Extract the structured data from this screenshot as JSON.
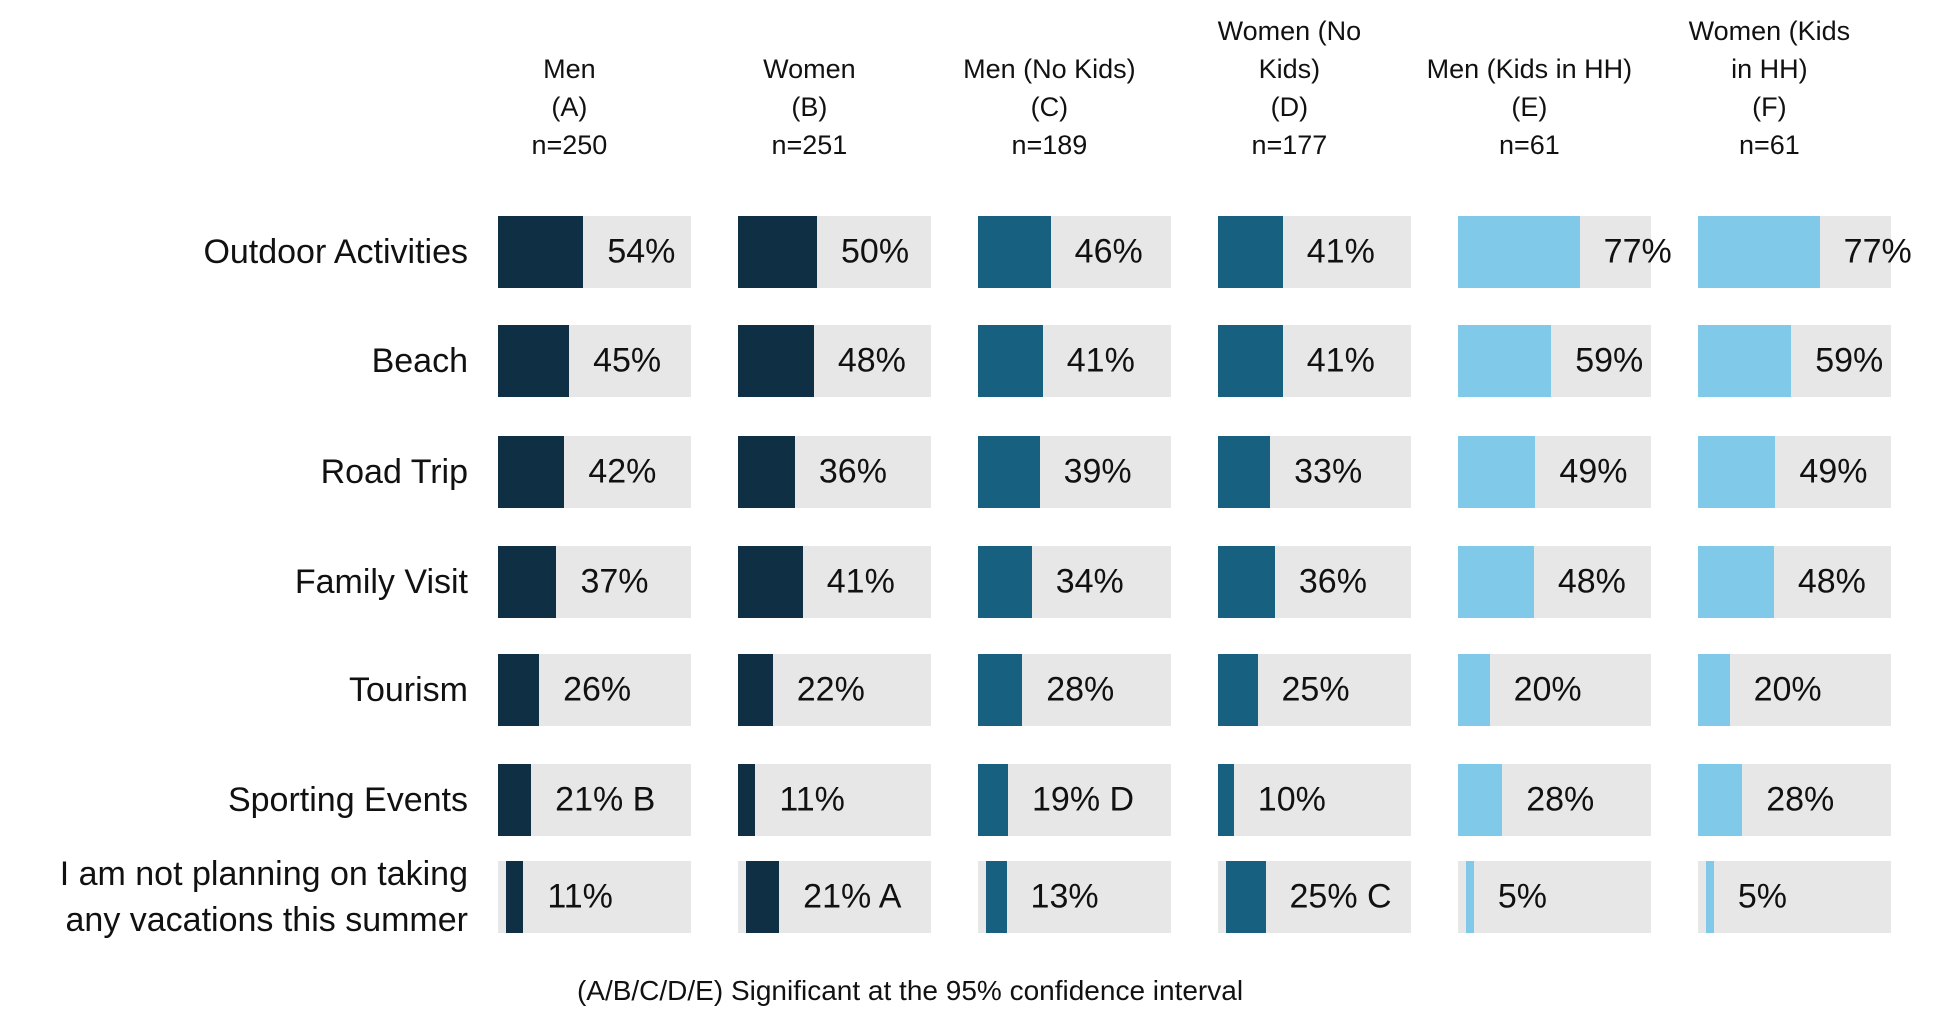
{
  "chart_data": {
    "type": "bar",
    "orientation": "horizontal",
    "footnote": "(A/B/C/D/E) Significant at the 95% confidence interval",
    "xlim": [
      0,
      100
    ],
    "categories": [
      "Outdoor Activities",
      "Beach",
      "Road Trip",
      "Family Visit",
      "Tourism",
      "Sporting Events",
      "I am not planning on taking any vacations this summer"
    ],
    "series": [
      {
        "name": "Men\n(A)\nn=250",
        "color": "#0e2f44",
        "values": [
          54,
          45,
          42,
          37,
          26,
          21,
          11
        ],
        "value_labels": [
          "54%",
          "45%",
          "42%",
          "37%",
          "26%",
          "21% B",
          "11%"
        ]
      },
      {
        "name": "Women\n(B)\nn=251",
        "color": "#0e2f44",
        "values": [
          50,
          48,
          36,
          41,
          22,
          11,
          21
        ],
        "value_labels": [
          "50%",
          "48%",
          "36%",
          "41%",
          "22%",
          "11%",
          "21% A"
        ]
      },
      {
        "name": "Men (No Kids)\n(C)\nn=189",
        "color": "#17607f",
        "values": [
          46,
          41,
          39,
          34,
          28,
          19,
          13
        ],
        "value_labels": [
          "46%",
          "41%",
          "39%",
          "34%",
          "28%",
          "19% D",
          "13%"
        ]
      },
      {
        "name": "Women (No\nKids)\n(D)\nn=177",
        "color": "#17607f",
        "values": [
          41,
          41,
          33,
          36,
          25,
          10,
          25
        ],
        "value_labels": [
          "41%",
          "41%",
          "33%",
          "36%",
          "25%",
          "10%",
          "25% C"
        ]
      },
      {
        "name": "Men (Kids in HH)\n(E)\nn=61",
        "color": "#80c9e8",
        "values": [
          77,
          59,
          49,
          48,
          20,
          28,
          5
        ],
        "value_labels": [
          "77%",
          "59%",
          "49%",
          "48%",
          "20%",
          "28%",
          "5%"
        ]
      },
      {
        "name": "Women (Kids\nin HH)\n(F)\nn=61",
        "color": "#80c9e8",
        "values": [
          77,
          59,
          49,
          48,
          20,
          28,
          5
        ],
        "value_labels": [
          "77%",
          "59%",
          "49%",
          "48%",
          "20%",
          "28%",
          "5%"
        ]
      }
    ]
  }
}
